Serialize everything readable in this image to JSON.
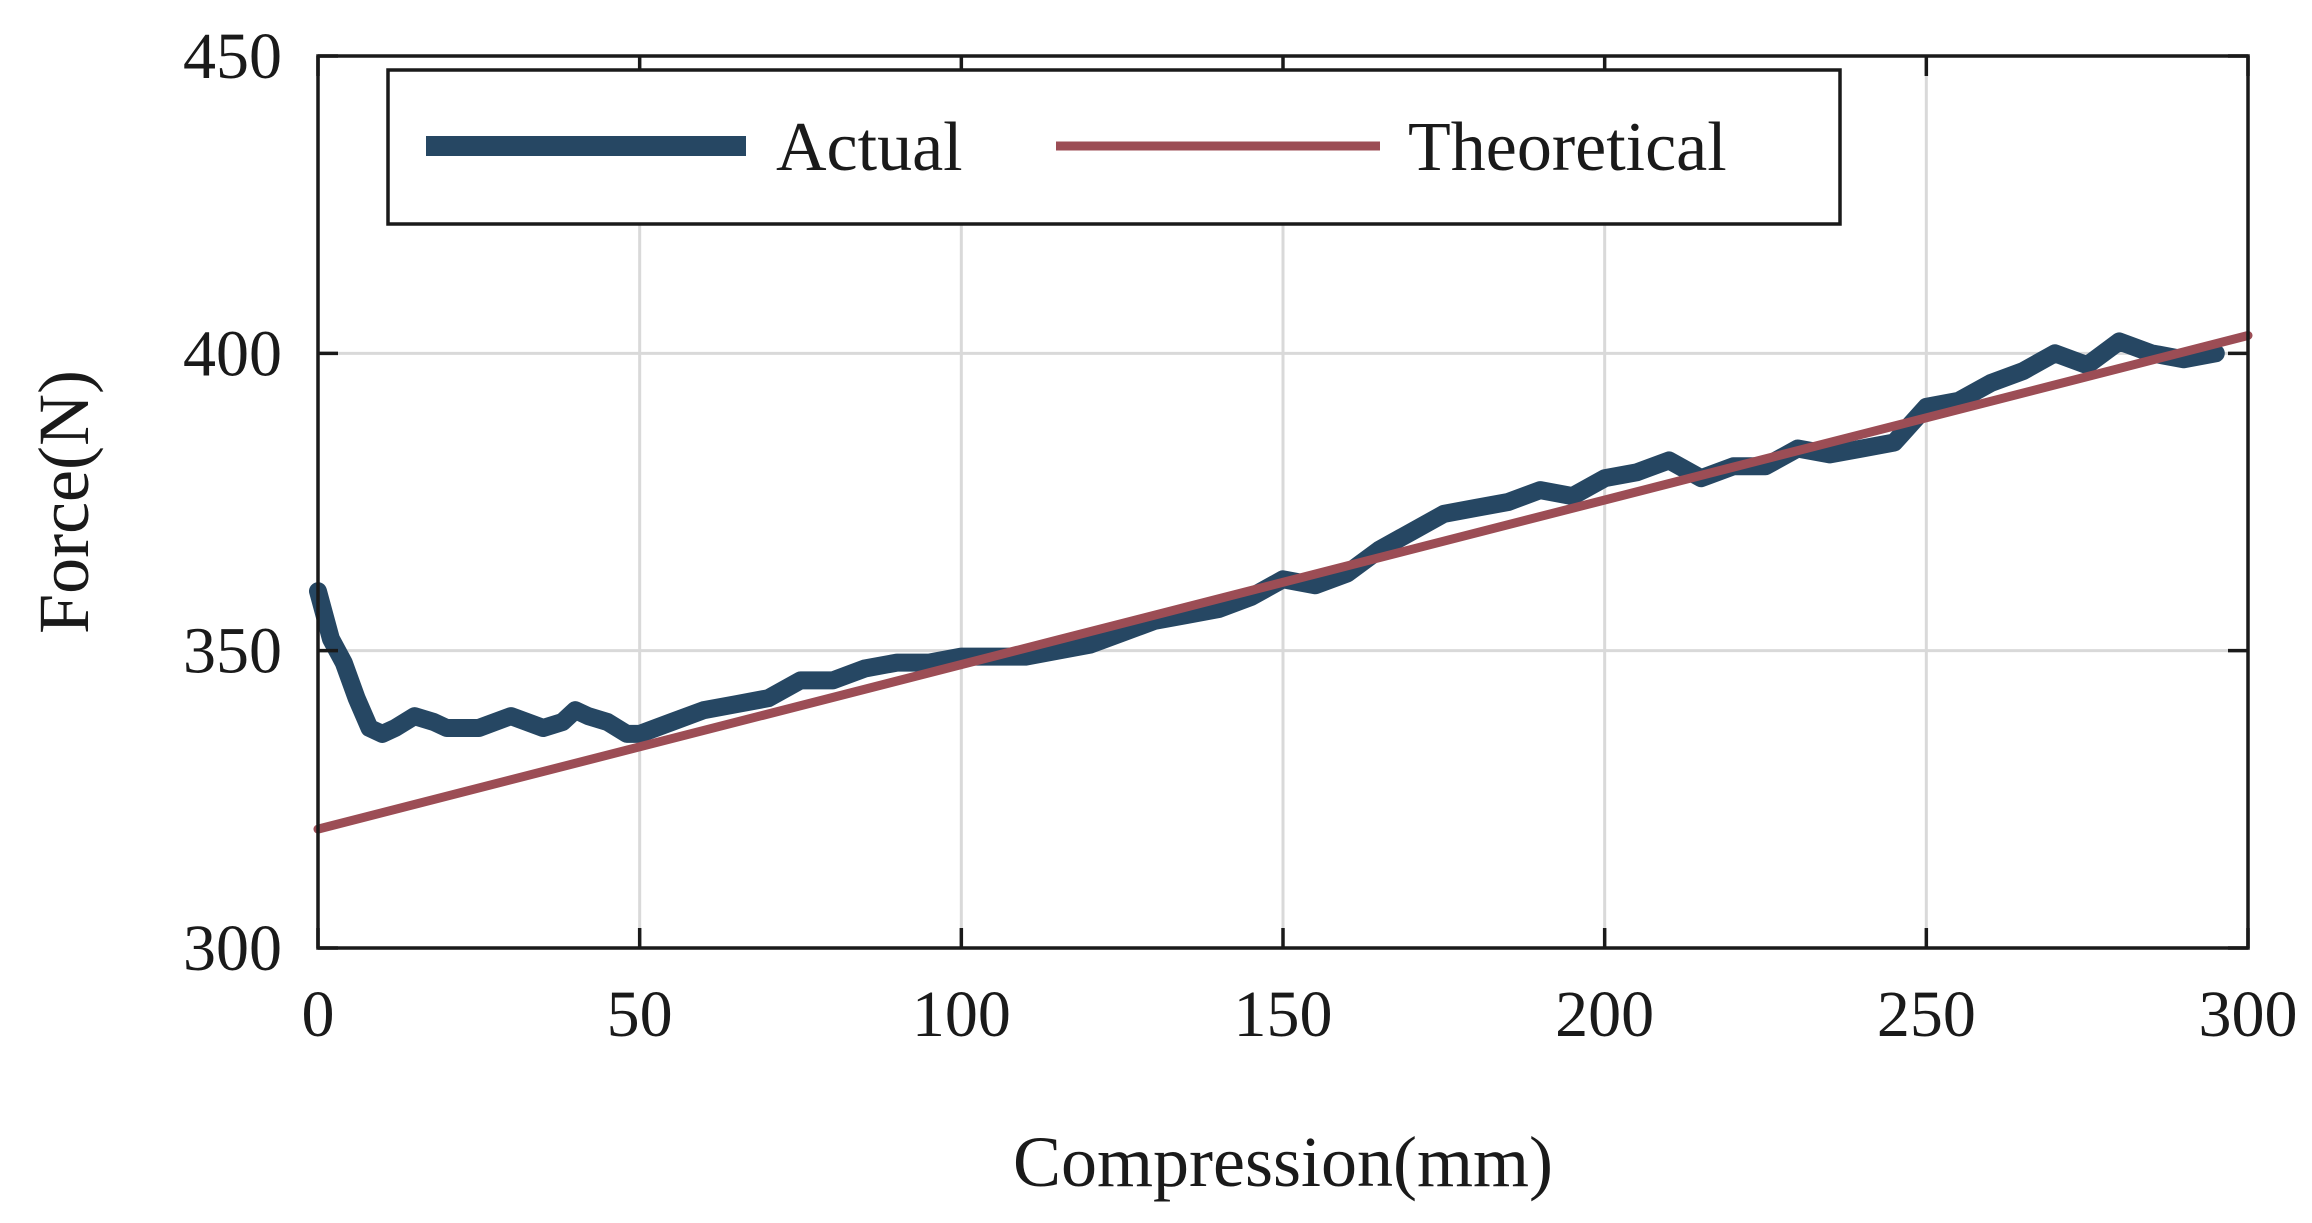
{
  "chart_data": {
    "type": "line",
    "title": "",
    "xlabel": "Compression(mm)",
    "ylabel": "Force(N)",
    "xlim": [
      0,
      300
    ],
    "ylim": [
      300,
      450
    ],
    "xticks": [
      0,
      50,
      100,
      150,
      200,
      250,
      300
    ],
    "yticks": [
      300,
      350,
      400,
      450
    ],
    "xtick_labels": [
      "0",
      "50",
      "100",
      "150",
      "200",
      "250",
      "300"
    ],
    "ytick_labels": [
      "300",
      "350",
      "400",
      "450"
    ],
    "grid": true,
    "legend": {
      "placement": "top-left",
      "entries": [
        "Actual",
        "Theoretical"
      ]
    },
    "series": [
      {
        "name": "Actual",
        "color": "#264763",
        "x": [
          0,
          2,
          4,
          6,
          8,
          10,
          12,
          15,
          18,
          20,
          25,
          30,
          35,
          38,
          40,
          42,
          45,
          48,
          50,
          55,
          60,
          65,
          70,
          75,
          80,
          85,
          90,
          95,
          100,
          105,
          110,
          115,
          120,
          125,
          130,
          135,
          140,
          145,
          150,
          155,
          160,
          165,
          170,
          175,
          180,
          185,
          190,
          195,
          200,
          205,
          210,
          215,
          220,
          225,
          230,
          235,
          240,
          245,
          250,
          255,
          260,
          265,
          270,
          275,
          280,
          285,
          290,
          295
        ],
        "y": [
          360,
          352,
          348,
          342,
          337,
          336,
          337,
          339,
          338,
          337,
          337,
          339,
          337,
          338,
          340,
          339,
          338,
          336,
          336,
          338,
          340,
          341,
          342,
          345,
          345,
          347,
          348,
          348,
          349,
          349,
          349,
          350,
          351,
          353,
          355,
          356,
          357,
          359,
          362,
          361,
          363,
          367,
          370,
          373,
          374,
          375,
          377,
          376,
          379,
          380,
          382,
          379,
          381,
          381,
          384,
          383,
          384,
          385,
          391,
          392,
          395,
          397,
          400,
          398,
          402,
          400,
          399,
          400
        ]
      },
      {
        "name": "Theoretical",
        "color": "#9c4d55",
        "x": [
          0,
          300
        ],
        "y": [
          320,
          403
        ]
      }
    ]
  }
}
